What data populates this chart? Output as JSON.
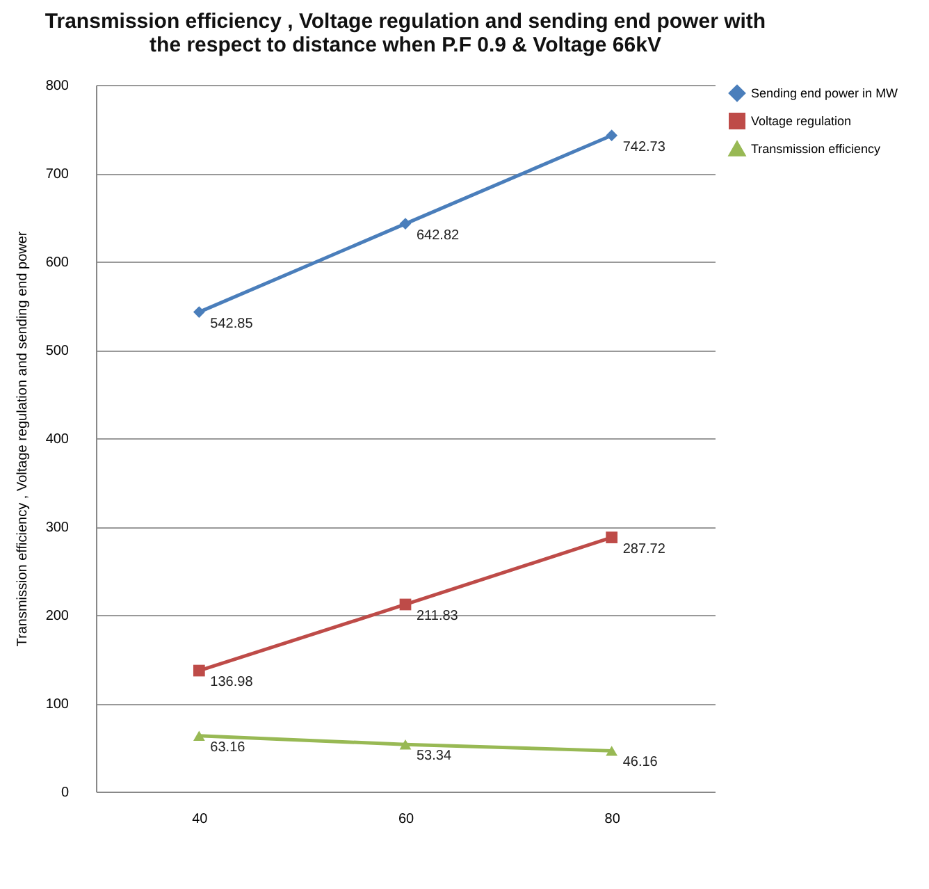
{
  "chart_data": {
    "type": "line",
    "title": [
      "Transmission efficiency , Voltage regulation and sending end power with",
      "the respect to distance when P.F 0.9 & Voltage 66kV"
    ],
    "ylabel": "Transmission efficiency  , Voltage regulation and sending end power",
    "categories": [
      "40",
      "60",
      "80"
    ],
    "series": [
      {
        "name": "Sending end power in MW",
        "color": "#4a7ebb",
        "marker": "diamond",
        "values": [
          542.85,
          642.82,
          742.73
        ]
      },
      {
        "name": "Voltage regulation",
        "color": "#be4b48",
        "marker": "square",
        "values": [
          136.98,
          211.83,
          287.72
        ]
      },
      {
        "name": "Transmission efficiency",
        "color": "#98b954",
        "marker": "triangle",
        "values": [
          63.16,
          53.34,
          46.16
        ]
      }
    ],
    "ylim": [
      0,
      800
    ],
    "yticks": [
      0,
      100,
      200,
      300,
      400,
      500,
      600,
      700,
      800
    ],
    "grid": "y",
    "legend": "right",
    "data_labels": true,
    "line_style": "solid"
  }
}
